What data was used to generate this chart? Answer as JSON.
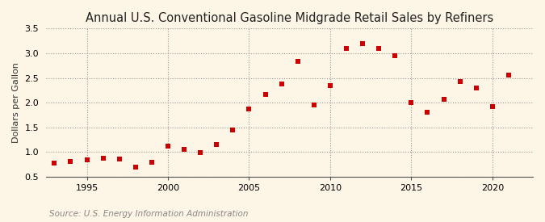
{
  "title": "Annual U.S. Conventional Gasoline Midgrade Retail Sales by Refiners",
  "ylabel": "Dollars per Gallon",
  "source": "Source: U.S. Energy Information Administration",
  "background_color": "#fdf5e6",
  "plot_bg_color": "#fdf5e6",
  "marker_color": "#cc0000",
  "marker": "s",
  "marker_size": 4.5,
  "xlim": [
    1992.5,
    2022.5
  ],
  "ylim": [
    0.5,
    3.5
  ],
  "yticks": [
    0.5,
    1.0,
    1.5,
    2.0,
    2.5,
    3.0,
    3.5
  ],
  "xticks": [
    1995,
    2000,
    2005,
    2010,
    2015,
    2020
  ],
  "years": [
    1993,
    1994,
    1995,
    1996,
    1997,
    1998,
    1999,
    2000,
    2001,
    2002,
    2003,
    2004,
    2005,
    2006,
    2007,
    2008,
    2009,
    2010,
    2011,
    2012,
    2013,
    2014,
    2015,
    2016,
    2017,
    2018,
    2019,
    2020,
    2021
  ],
  "values": [
    0.78,
    0.81,
    0.84,
    0.87,
    0.86,
    0.7,
    0.8,
    1.12,
    1.05,
    0.99,
    1.15,
    1.45,
    1.87,
    2.16,
    2.38,
    2.83,
    1.95,
    2.35,
    3.1,
    3.2,
    3.1,
    2.95,
    2.01,
    1.81,
    2.07,
    2.42,
    2.3,
    1.92,
    2.55
  ],
  "grid_color": "#999999",
  "title_fontsize": 10.5,
  "label_fontsize": 8,
  "tick_fontsize": 8,
  "source_fontsize": 7.5,
  "source_color": "#888888"
}
